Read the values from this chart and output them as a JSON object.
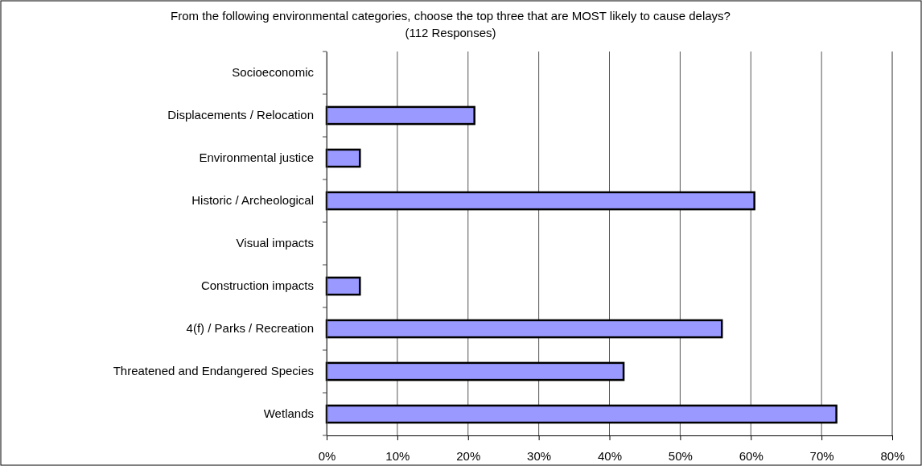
{
  "chart_data": {
    "type": "bar",
    "orientation": "horizontal",
    "title": "From the following environmental categories, choose the top three that are MOST likely to cause delays? (112 Responses)",
    "categories": [
      "Socioeconomic",
      "Displacements / Relocation",
      "Environmental justice",
      "Historic / Archeological",
      "Visual impacts",
      "Construction impacts",
      "4(f) / Parks / Recreation",
      "Threatened and Endangered Species",
      "Wetlands"
    ],
    "values": [
      0,
      20.9,
      4.7,
      60.5,
      0,
      4.7,
      55.9,
      42.0,
      72.1
    ],
    "color": "#9999ff",
    "xlim": [
      0,
      80
    ],
    "xticks": [
      {
        "value": 0,
        "label": "0%"
      },
      {
        "value": 10,
        "label": "10%"
      },
      {
        "value": 20,
        "label": "20%"
      },
      {
        "value": 30,
        "label": "30%"
      },
      {
        "value": 40,
        "label": "40%"
      },
      {
        "value": 50,
        "label": "50%"
      },
      {
        "value": 60,
        "label": "60%"
      },
      {
        "value": 70,
        "label": "70%"
      },
      {
        "value": 80,
        "label": "80%"
      }
    ],
    "grid": "x"
  }
}
